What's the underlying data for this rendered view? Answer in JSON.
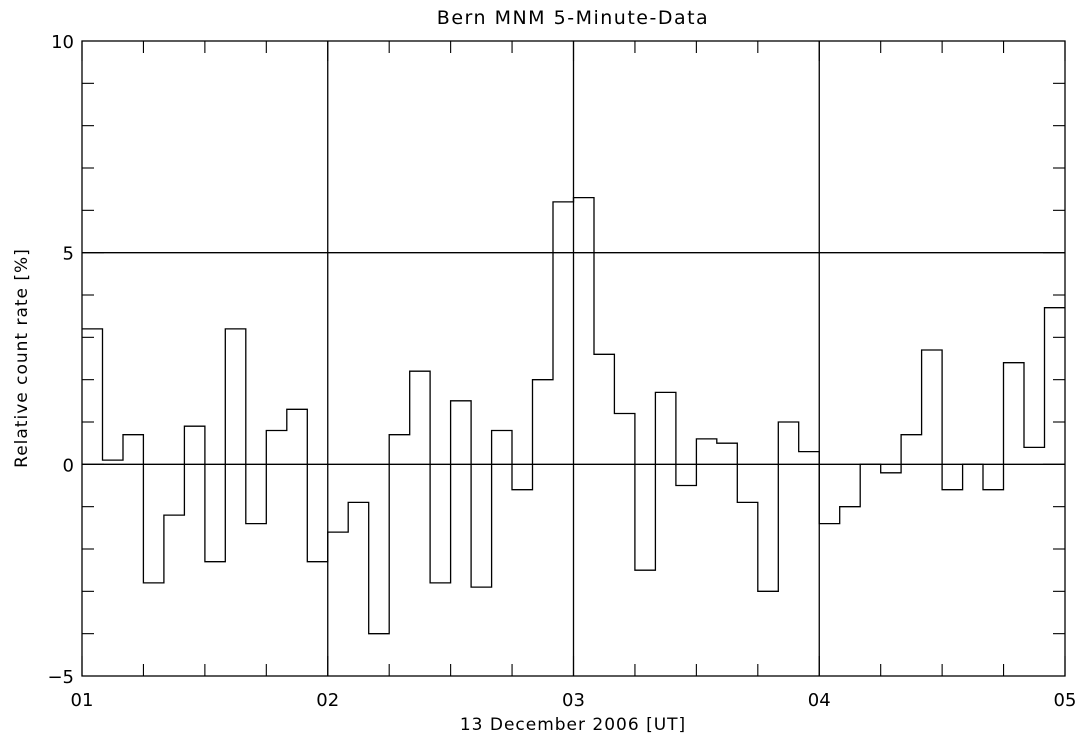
{
  "chart_data": {
    "type": "line",
    "step": true,
    "title": "Bern MNM 5-Minute-Data",
    "xlabel": "13 December 2006 [UT]",
    "ylabel": "Relative count rate [%]",
    "xlim": [
      1,
      5
    ],
    "ylim": [
      -5,
      10
    ],
    "x_ticks": [
      {
        "v": 1,
        "label": "01"
      },
      {
        "v": 2,
        "label": "02"
      },
      {
        "v": 3,
        "label": "03"
      },
      {
        "v": 4,
        "label": "04"
      },
      {
        "v": 5,
        "label": "05"
      }
    ],
    "y_ticks": [
      {
        "v": -5,
        "label": "−5"
      },
      {
        "v": 0,
        "label": "0"
      },
      {
        "v": 5,
        "label": "5"
      },
      {
        "v": 10,
        "label": "10"
      }
    ],
    "gridlines_x": [
      2,
      3,
      4
    ],
    "gridlines_y": [
      0,
      5
    ],
    "series": [
      {
        "interval_hours": 0.08333,
        "start_hour": 1,
        "values": [
          3.2,
          0.1,
          0.7,
          -2.8,
          -1.2,
          0.9,
          -2.3,
          3.2,
          -1.4,
          0.8,
          1.3,
          -2.3,
          -1.6,
          -0.9,
          -4.0,
          0.7,
          2.2,
          -2.8,
          1.5,
          -2.9,
          0.8,
          -0.6,
          2.0,
          6.2,
          6.3,
          2.6,
          1.2,
          -2.5,
          1.7,
          -0.5,
          0.6,
          0.5,
          -0.9,
          -3.0,
          1.0,
          0.3,
          -1.4,
          -1.0,
          0.0,
          -0.2,
          0.7,
          2.7,
          -0.6,
          0.0,
          -0.6,
          2.4,
          0.4,
          3.7
        ]
      }
    ]
  }
}
